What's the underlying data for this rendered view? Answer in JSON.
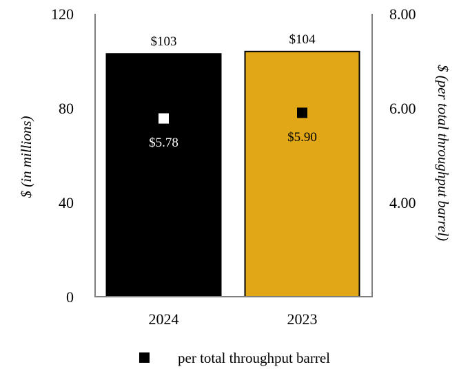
{
  "chart_data": {
    "type": "bar",
    "categories": [
      "2024",
      "2023"
    ],
    "series": [
      {
        "values": [
          103,
          104
        ],
        "value_labels": [
          "$103",
          "$104"
        ],
        "colors": [
          "#000000",
          "#E2A717"
        ],
        "axis": "left"
      },
      {
        "name": "per total throughput barrel",
        "type": "scatter",
        "values": [
          5.78,
          5.9
        ],
        "value_labels": [
          "$5.78",
          "$5.90"
        ],
        "marker_colors": [
          "#ffffff",
          "#000000"
        ],
        "label_colors": [
          "#ffffff",
          "#000000"
        ],
        "axis": "right"
      }
    ],
    "ylabel": "$ (in millions)",
    "ylim": [
      0,
      120
    ],
    "yticks": [
      "0",
      "40",
      "80",
      "120"
    ],
    "y2label": "$ (per total throughput barrel)",
    "y2lim": [
      2.0,
      8.0
    ],
    "y2ticks": [
      "4.00",
      "6.00",
      "8.00"
    ],
    "legend": {
      "position": "bottom",
      "label": "per total throughput barrel",
      "marker_color": "#000000"
    },
    "grid": false
  }
}
